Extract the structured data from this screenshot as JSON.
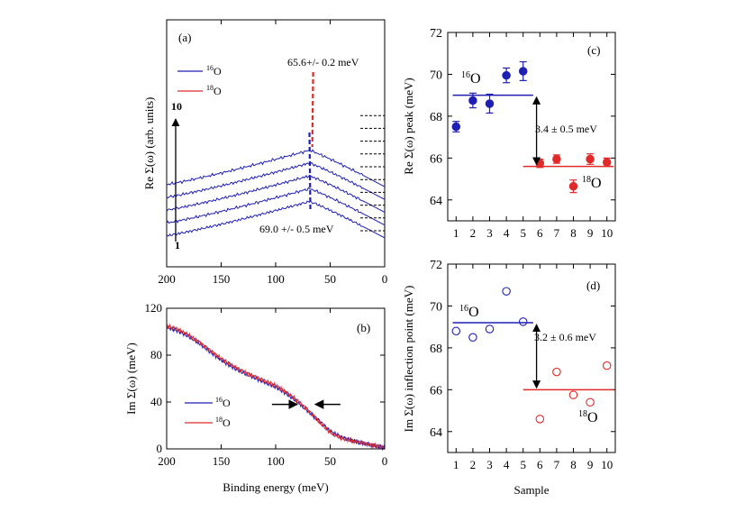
{
  "colors": {
    "blue": "#1f1fb4",
    "red": "#e02a2a",
    "axis": "#000000"
  },
  "chart_data": [
    {
      "panel": "a",
      "type": "line",
      "panel_label": "(a)",
      "ylabel": "Re Σ(ω) (arb. units)",
      "xlabel": "",
      "xlim": [
        200,
        0
      ],
      "xticks": [
        "200",
        "150",
        "100",
        "50",
        "0"
      ],
      "tick_values": [
        200,
        150,
        100,
        50,
        0
      ],
      "legend": [
        {
          "name": "16O",
          "sup": "16",
          "base": "O",
          "color": "blue"
        },
        {
          "name": "18O",
          "sup": "18",
          "base": "O",
          "color": "red"
        }
      ],
      "annotations": {
        "red_peak": "65.6+/- 0.2 meV",
        "blue_peak": "69.0 +/- 0.5 meV",
        "stack_top": "10",
        "stack_bottom": "1"
      },
      "series": [
        {
          "name": "sample 1",
          "isotope": "16O",
          "offset": 0
        },
        {
          "name": "sample 2",
          "isotope": "16O",
          "offset": 1
        },
        {
          "name": "sample 3",
          "isotope": "16O",
          "offset": 2
        },
        {
          "name": "sample 4",
          "isotope": "16O",
          "offset": 3
        },
        {
          "name": "sample 5",
          "isotope": "16O",
          "offset": 4
        },
        {
          "name": "sample 6",
          "isotope": "18O",
          "offset": 5
        },
        {
          "name": "sample 7",
          "isotope": "18O",
          "offset": 6
        },
        {
          "name": "sample 8",
          "isotope": "18O",
          "offset": 7
        },
        {
          "name": "sample 9",
          "isotope": "18O",
          "offset": 8
        },
        {
          "name": "sample 10",
          "isotope": "18O",
          "offset": 9
        }
      ],
      "peak_positions": {
        "16O": 69.0,
        "18O": 65.6
      }
    },
    {
      "panel": "b",
      "type": "line",
      "panel_label": "(b)",
      "ylabel": "Im Σ(ω) (meV)",
      "xlabel": "Binding energy (meV)",
      "xlim": [
        200,
        0
      ],
      "ylim": [
        0,
        120
      ],
      "xticks": [
        "200",
        "150",
        "100",
        "50",
        "0"
      ],
      "tick_values": [
        200,
        150,
        100,
        50,
        0
      ],
      "yticks": [
        "0",
        "40",
        "80",
        "120"
      ],
      "ytick_values": [
        0,
        40,
        80,
        120
      ],
      "legend": [
        {
          "name": "16O",
          "sup": "16",
          "base": "O",
          "color": "blue"
        },
        {
          "name": "18O",
          "sup": "18",
          "base": "O",
          "color": "red"
        }
      ],
      "arrow_marker_energy": 72,
      "series": [
        {
          "name": "16O",
          "color": "blue",
          "x": [
            200,
            190,
            180,
            170,
            160,
            150,
            140,
            130,
            120,
            110,
            100,
            90,
            80,
            70,
            60,
            50,
            40,
            30,
            20,
            10,
            0
          ],
          "y": [
            104,
            101,
            96,
            90,
            83,
            76,
            70,
            65,
            61,
            57,
            53,
            47,
            40,
            32,
            24,
            15,
            10,
            7,
            5,
            3,
            1
          ]
        },
        {
          "name": "18O",
          "color": "red",
          "x": [
            200,
            190,
            180,
            170,
            160,
            150,
            140,
            130,
            120,
            110,
            100,
            90,
            80,
            70,
            60,
            50,
            40,
            30,
            20,
            10,
            0
          ],
          "y": [
            105,
            102,
            97,
            91,
            84,
            77,
            71,
            66,
            62,
            58,
            54,
            48,
            41,
            33,
            23,
            14,
            9,
            7,
            5,
            3,
            1
          ]
        }
      ]
    },
    {
      "panel": "c",
      "type": "scatter",
      "panel_label": "(c)",
      "ylabel": "Re Σ(ω) peak (meV)",
      "xlabel": "",
      "xlim": [
        0.5,
        10.5
      ],
      "ylim": [
        63,
        72
      ],
      "xticks": [
        "1",
        "2",
        "3",
        "4",
        "5",
        "6",
        "7",
        "8",
        "9",
        "10"
      ],
      "tick_values": [
        1,
        2,
        3,
        4,
        5,
        6,
        7,
        8,
        9,
        10
      ],
      "yticks": [
        "64",
        "66",
        "68",
        "70",
        "72"
      ],
      "ytick_values": [
        64,
        66,
        68,
        70,
        72
      ],
      "series": [
        {
          "name": "16O",
          "sup": "16",
          "base": "O",
          "color": "blue",
          "filled": true,
          "x": [
            1,
            2,
            3,
            4,
            5
          ],
          "y": [
            67.5,
            68.75,
            68.6,
            69.95,
            70.15
          ],
          "err": [
            0.25,
            0.35,
            0.45,
            0.35,
            0.45
          ],
          "mean": 69.0,
          "mean_range": [
            0.8,
            5.6
          ]
        },
        {
          "name": "18O",
          "sup": "18",
          "base": "O",
          "color": "red",
          "filled": true,
          "x": [
            6,
            7,
            8,
            9,
            10
          ],
          "y": [
            65.75,
            65.95,
            64.65,
            65.95,
            65.8
          ],
          "err": [
            0.2,
            0.2,
            0.3,
            0.25,
            0.2
          ],
          "mean": 65.6,
          "mean_range": [
            5.0,
            10.4
          ]
        }
      ],
      "annotation": "3.4 ± 0.5 meV",
      "arrow_x": 5.8
    },
    {
      "panel": "d",
      "type": "scatter",
      "panel_label": "(d)",
      "ylabel": "Im Σ(ω) inflection point (meV)",
      "xlabel": "Sample",
      "xlim": [
        0.5,
        10.5
      ],
      "ylim": [
        63,
        72
      ],
      "xticks": [
        "1",
        "2",
        "3",
        "4",
        "5",
        "6",
        "7",
        "8",
        "9",
        "10"
      ],
      "tick_values": [
        1,
        2,
        3,
        4,
        5,
        6,
        7,
        8,
        9,
        10
      ],
      "yticks": [
        "64",
        "66",
        "68",
        "70",
        "72"
      ],
      "ytick_values": [
        64,
        66,
        68,
        70,
        72
      ],
      "series": [
        {
          "name": "16O",
          "sup": "16",
          "base": "O",
          "color": "blue",
          "filled": false,
          "x": [
            1,
            2,
            3,
            4,
            5
          ],
          "y": [
            68.8,
            68.5,
            68.9,
            70.7,
            69.25
          ],
          "mean": 69.2,
          "mean_range": [
            0.8,
            5.6
          ]
        },
        {
          "name": "18O",
          "sup": "18",
          "base": "O",
          "color": "red",
          "filled": false,
          "x": [
            6,
            7,
            8,
            9,
            10
          ],
          "y": [
            64.6,
            66.85,
            65.75,
            65.4,
            67.15
          ],
          "mean": 66.0,
          "mean_range": [
            5.0,
            10.4
          ]
        }
      ],
      "annotation": "3.2 ± 0.6 meV",
      "arrow_x": 5.8
    }
  ]
}
